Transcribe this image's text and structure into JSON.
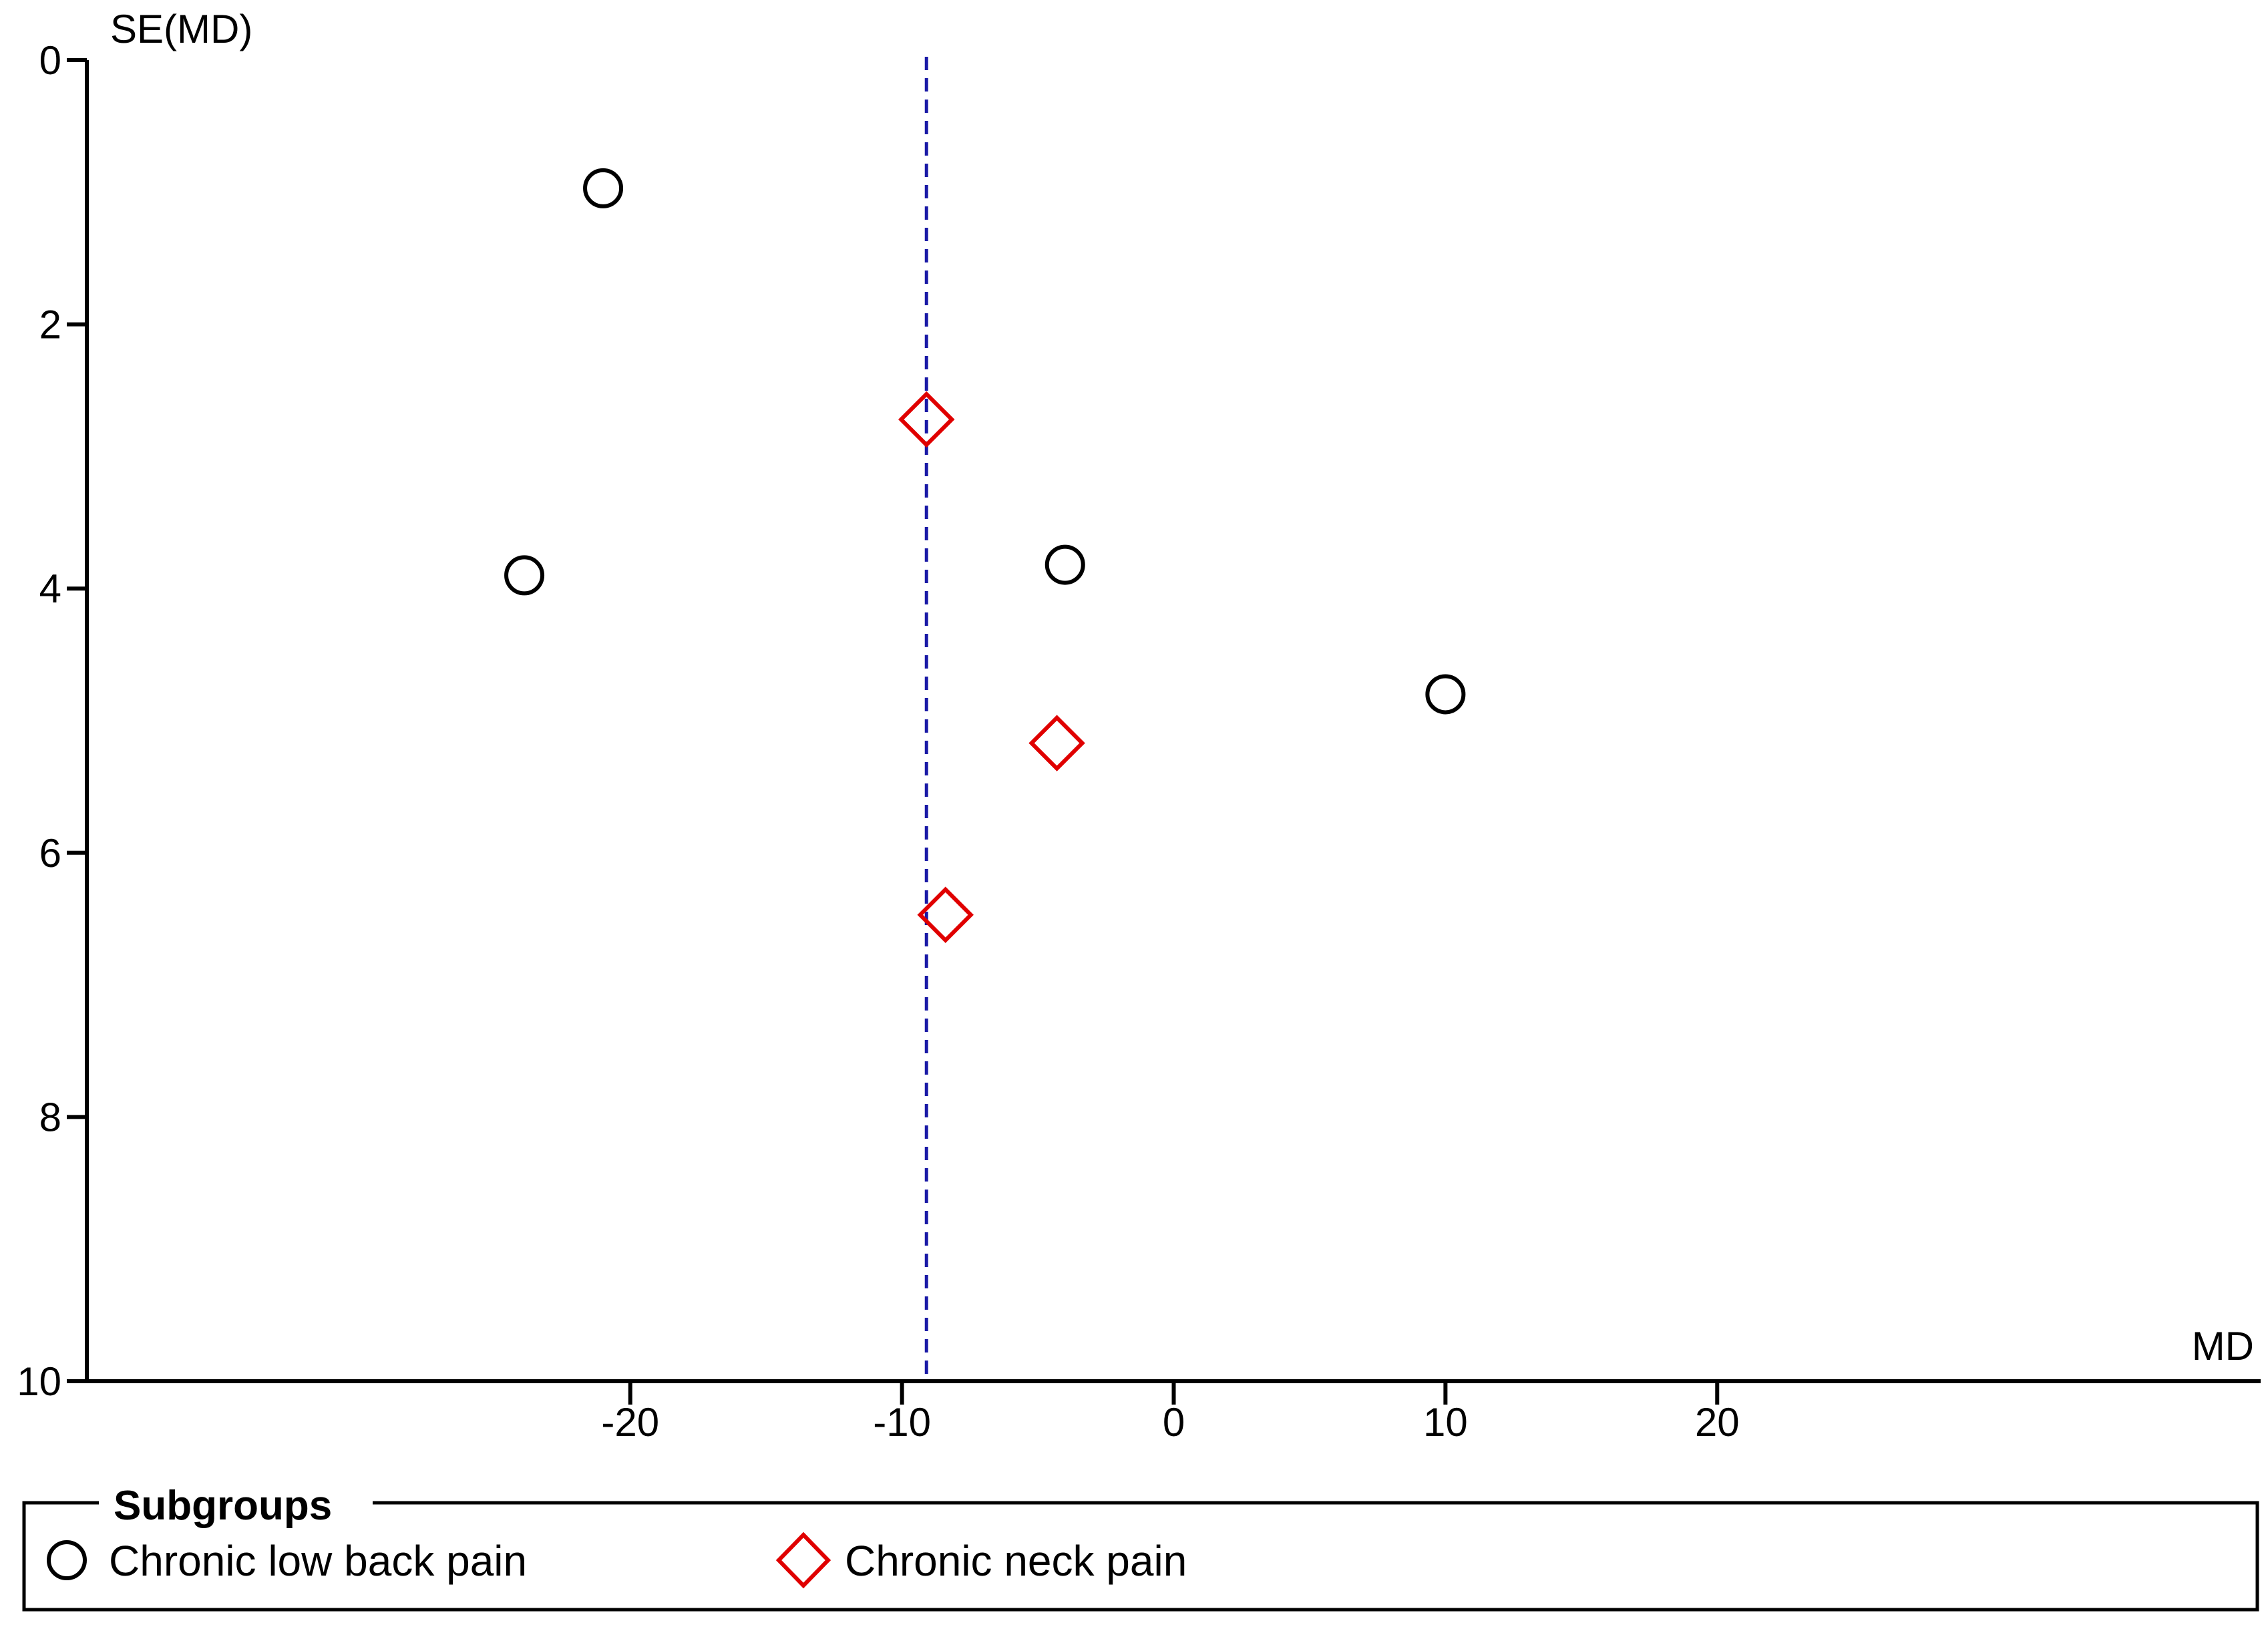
{
  "chart_data": {
    "type": "scatter",
    "chart_subtype": "funnel plot",
    "xlabel": "MD",
    "ylabel": "SE(MD)",
    "xlim": [
      -40,
      40
    ],
    "ylim": [
      0,
      10
    ],
    "y_inverted": true,
    "x_ticks": [
      -20,
      -10,
      0,
      10,
      20
    ],
    "x_tick_labels": [
      "-20",
      "-10",
      "0",
      "10",
      "20"
    ],
    "y_ticks": [
      0,
      2,
      4,
      6,
      8,
      10
    ],
    "y_tick_labels": [
      "0",
      "2",
      "4",
      "6",
      "8",
      "10"
    ],
    "grid": false,
    "reference_line": {
      "x": -9.1,
      "style": "dashed",
      "color": "#1a1aa6"
    },
    "series": [
      {
        "name": "Chronic low back pain",
        "marker": "circle",
        "color": "#000000",
        "points": [
          {
            "x": -21.0,
            "y": 0.97
          },
          {
            "x": -23.9,
            "y": 3.9
          },
          {
            "x": -4.0,
            "y": 3.82
          },
          {
            "x": 10.0,
            "y": 4.8
          }
        ]
      },
      {
        "name": "Chronic neck pain",
        "marker": "diamond",
        "color": "#e00000",
        "points": [
          {
            "x": -9.1,
            "y": 2.72
          },
          {
            "x": -4.3,
            "y": 5.17
          },
          {
            "x": -8.4,
            "y": 6.47
          }
        ]
      }
    ],
    "legend": {
      "title": "Subgroups",
      "placement": "bottom",
      "entries": [
        "Chronic low back pain",
        "Chronic neck pain"
      ]
    }
  }
}
